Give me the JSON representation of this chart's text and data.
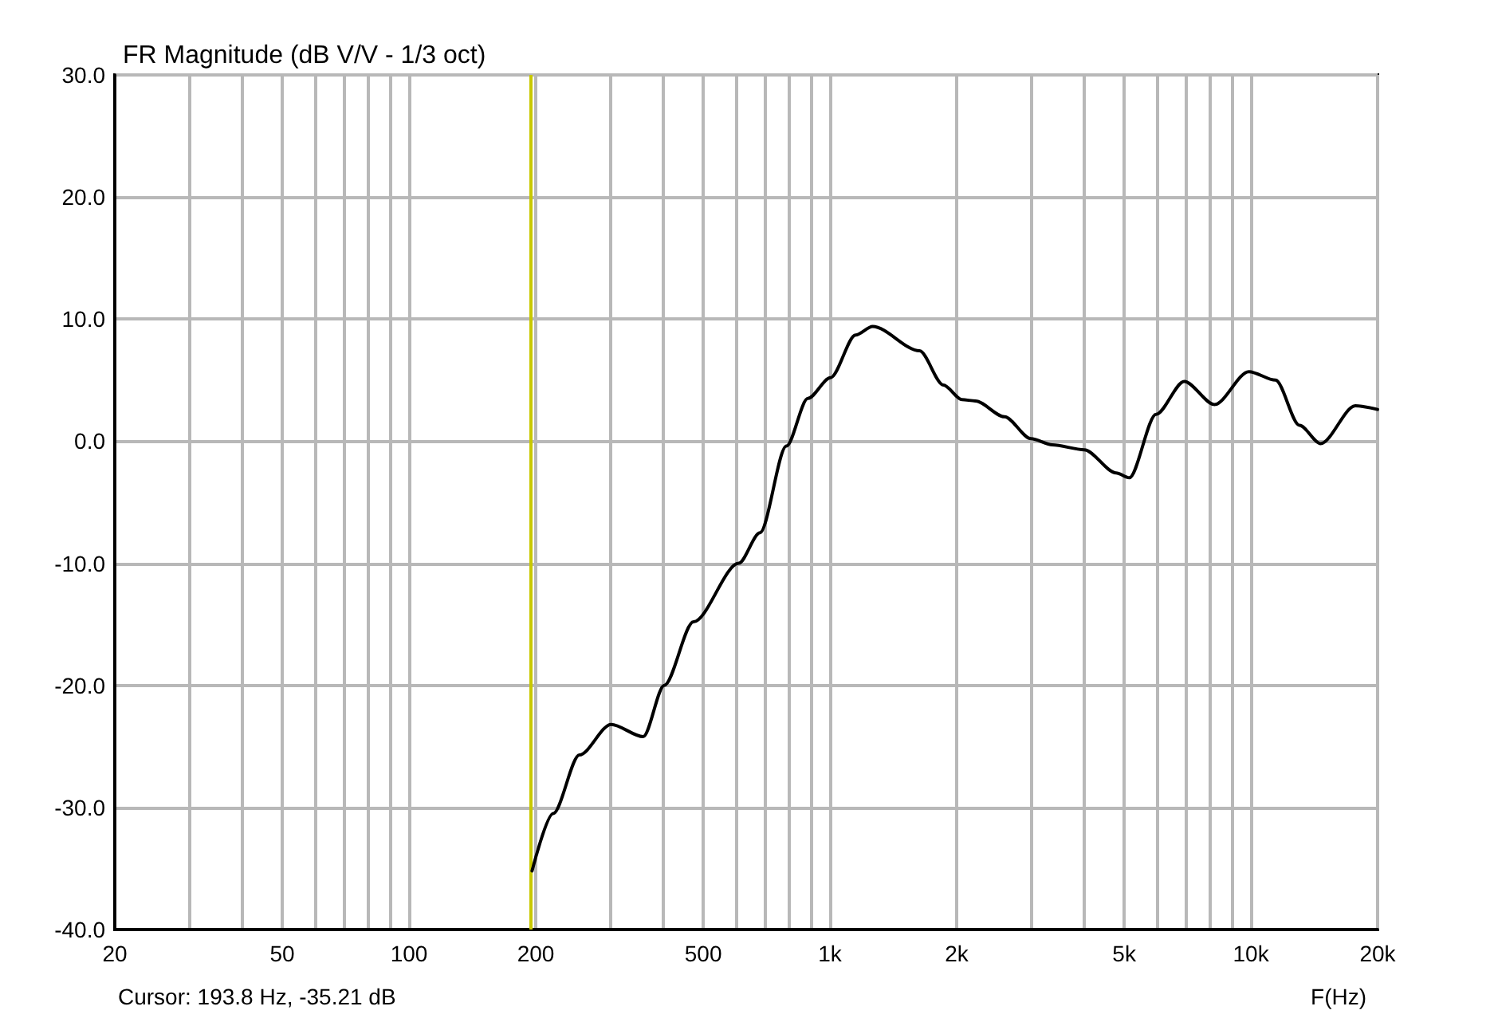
{
  "chart_data": {
    "type": "line",
    "title": "FR Magnitude (dB V/V - 1/3 oct)",
    "xlabel": "F(Hz)",
    "annotations": [
      "Cursor: 193.8 Hz, -35.21 dB"
    ],
    "log": "x",
    "grid": true,
    "marker": "none",
    "line_style": "solid",
    "xlim": [
      20,
      20000
    ],
    "xticks": [
      20,
      {
        "value": 30,
        "label": null
      },
      {
        "value": 40,
        "label": null
      },
      50,
      {
        "value": 60,
        "label": null
      },
      {
        "value": 70,
        "label": null
      },
      {
        "value": 80,
        "label": null
      },
      {
        "value": 90,
        "label": null
      },
      100,
      200,
      {
        "value": 300,
        "label": null
      },
      {
        "value": 400,
        "label": null
      },
      500,
      {
        "value": 600,
        "label": null
      },
      {
        "value": 700,
        "label": null
      },
      {
        "value": 800,
        "label": null
      },
      {
        "value": 900,
        "label": null
      },
      {
        "value": 1000,
        "label": "1k"
      },
      {
        "value": 2000,
        "label": "2k"
      },
      {
        "value": 3000,
        "label": null
      },
      {
        "value": 4000,
        "label": null
      },
      {
        "value": 5000,
        "label": "5k"
      },
      {
        "value": 6000,
        "label": null
      },
      {
        "value": 7000,
        "label": null
      },
      {
        "value": 8000,
        "label": null
      },
      {
        "value": 9000,
        "label": null
      },
      {
        "value": 10000,
        "label": "10k"
      },
      {
        "value": 20000,
        "label": "20k"
      }
    ],
    "ylim": [
      -40,
      30
    ],
    "yticks": [
      {
        "value": -40,
        "label": "-40.0"
      },
      {
        "value": -30,
        "label": "-30.0"
      },
      {
        "value": -20,
        "label": "-20.0"
      },
      {
        "value": -10,
        "label": "-10.0"
      },
      {
        "value": 0,
        "label": "0.0"
      },
      {
        "value": 10,
        "label": "10.0"
      },
      {
        "value": 20,
        "label": "20.0"
      },
      {
        "value": 30,
        "label": "30.0"
      }
    ],
    "ref_lines": [
      {
        "axis": "x",
        "value": 193.8,
        "color": "#c8c800"
      }
    ],
    "series": [
      {
        "color": "#000000",
        "x": [
          196,
          220,
          254,
          302,
          360,
          404,
          474,
          607,
          682,
          788,
          886,
          1003,
          1151,
          1263,
          1632,
          1860,
          2059,
          2215,
          2598,
          3004,
          3375,
          4018,
          4784,
          5141,
          5952,
          6945,
          8194,
          9889,
          11444,
          13045,
          14646,
          17703,
          20000
        ],
        "values": [
          -35.2,
          -30.5,
          -25.7,
          -23.2,
          -24.2,
          -20.0,
          -14.8,
          -10.0,
          -7.5,
          -0.4,
          3.5,
          5.2,
          8.7,
          9.4,
          7.4,
          4.6,
          3.4,
          3.3,
          2.0,
          0.2,
          -0.3,
          -0.7,
          -2.6,
          -3.0,
          2.2,
          4.9,
          3.0,
          5.7,
          5.0,
          1.3,
          -0.2,
          2.9,
          2.6
        ]
      }
    ]
  }
}
